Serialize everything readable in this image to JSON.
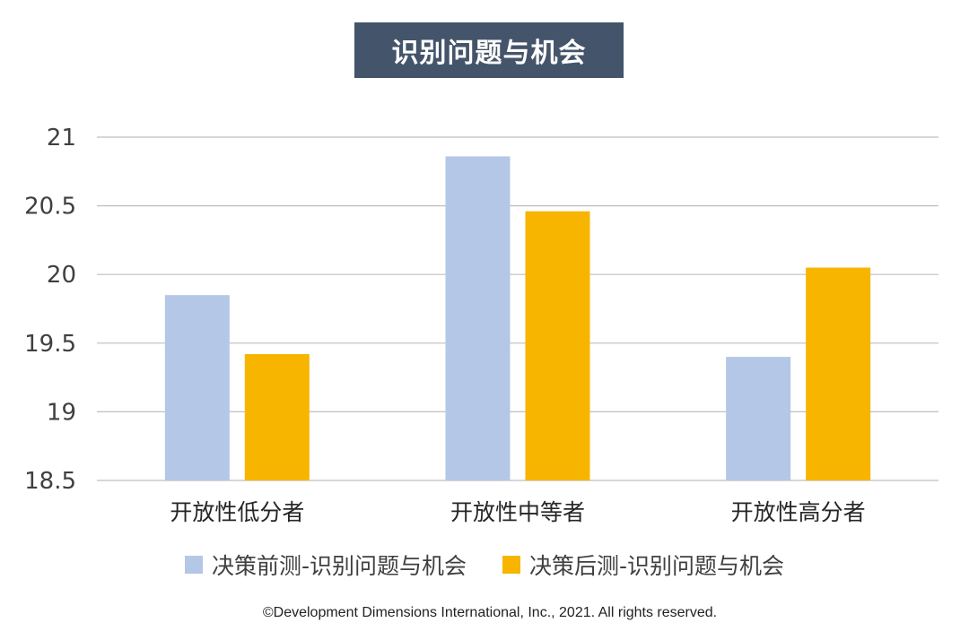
{
  "chart_data": {
    "type": "bar",
    "title": "识别问题与机会",
    "categories": [
      "开放性低分者",
      "开放性中等者",
      "开放性高分者"
    ],
    "series": [
      {
        "name": "决策前测-识别问题与机会",
        "values": [
          19.85,
          20.86,
          19.4
        ],
        "color": "#b4c7e7"
      },
      {
        "name": "决策后测-识别问题与机会",
        "values": [
          19.42,
          20.46,
          20.05
        ],
        "color": "#f7b500"
      }
    ],
    "ylim": [
      18.5,
      21
    ],
    "yticks": [
      "18.5",
      "19",
      "19.5",
      "20",
      "20.5",
      "21"
    ],
    "grid": true,
    "legend": "bottom"
  },
  "footer": "©Development Dimensions International, Inc., 2021. All rights reserved."
}
